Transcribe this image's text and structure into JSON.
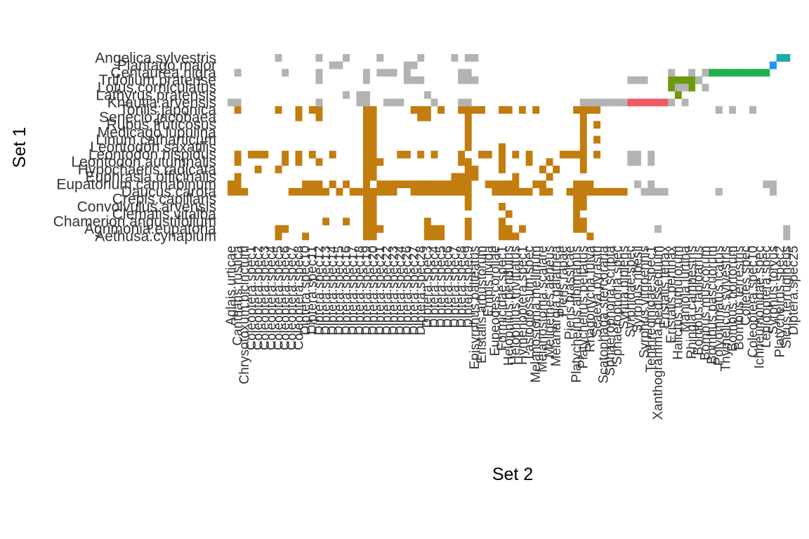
{
  "chart_data": {
    "type": "heatmap",
    "xlabel": "Set 2",
    "ylabel": "Set 1",
    "grid": false,
    "legend": "none",
    "rows": [
      "Angelica.sylvestris",
      "Plantago.major",
      "Centaurea.nigra",
      "Trifolium.pratense",
      "Lotus.corniculatus",
      "Lathyrus.pratensis",
      "Knautia.arvensis",
      "Torilis.japonica",
      "Senecio.jacobaea",
      "Rubus.fruticosus",
      "Medicago.lupulina",
      "Linum.catharticum",
      "Leontodon.saxatilis",
      "Leontodon.hispidus",
      "Leontodon.autumnalis",
      "Hypochaeris.radicata",
      "Euphrasia.officinalis",
      "Eupatorium.cannabinum",
      "Daucus.carota",
      "Crepis.capillaris",
      "Convolvulus.arvensis",
      "Clematis.vitalba",
      "Chamerion.angustifolium",
      "Agrimonia.eupatoria",
      "Aethusa.cynapium"
    ],
    "columns": [
      "Aglais.urticae",
      "Cantharis.rustica",
      "Chrysotoxum.bicinctum",
      "Coleoptera.spec1",
      "Coleoptera.spec2",
      "Coleoptera.spec3",
      "Coleoptera.spec4",
      "Coleoptera.spec5",
      "Coleoptera.spec6",
      "Coleoptera.spec7",
      "Coleoptera.spec8",
      "Diptera.spec10",
      "Diptera.spec11",
      "Diptera.spec12",
      "Diptera.spec13",
      "Diptera.spec14",
      "Diptera.spec15",
      "Diptera.spec16",
      "Diptera.spec17",
      "Diptera.spec18",
      "Diptera.spec19",
      "Diptera.spec20",
      "Diptera.spec21",
      "Diptera.spec22",
      "Diptera.spec23",
      "Diptera.spec24",
      "Diptera.spec26",
      "Diptera.spec27",
      "Diptera.spec28",
      "Diptera.spec3",
      "Diptera.spec4",
      "Diptera.spec5",
      "Diptera.spec6",
      "Diptera.spec7",
      "Diptera.spec8",
      "Diptera.spec9",
      "Episyrphus.balteatus",
      "Eristalis.arbustorum",
      "Empis.livida",
      "Eupeodes.corollae",
      "Formicidae.spec1",
      "Helophilus.pendulus",
      "Helophilus.trivittatus",
      "Hymenoptera.spec1",
      "Lasioglossum.spec",
      "Melanostoma.mellinum",
      "Melanostoma.scalare",
      "Meligethes.aeneus",
      "Melanargia.galathea",
      "Pieris.rapae",
      "Pieris.brassicae",
      "Platycheirus.albimanus",
      "Platycheirus.peltatus",
      "Rhagonycha.fulva",
      "Scaeva.pyrastri",
      "Scatophaga.stercoraria",
      "Sphaerophoria.scripta",
      "Sphaerophoria.spec",
      "Syritta.pipiens",
      "Syrphidae.spec",
      "Syrphus.ribesii",
      "Syrphus.vitripennis",
      "Tenthredinidae.spec1",
      "Xanthogramma.pedissequum",
      "Eristalis.tenax",
      "Eristalis.pertinax",
      "Halictus.tumulorum",
      "Maniola.jurtina",
      "Rhingia.campestris",
      "Bombus.lapidarius",
      "Bombus.muscorum",
      "Bombus.pascuorum",
      "Polyommatus.icarus",
      "Thymelicus.sylvestris",
      "Bombus.hortorum",
      "Bombus.terrestris",
      "Colletes.spec",
      "Coleoptera.spec10",
      "Ichneumonidae.spec",
      "Lepidoptera.spec",
      "Syrphus.torvus",
      "Platycheirus.spec2",
      "Sicus.ferrugineus",
      "Diptera.spec25"
    ],
    "legend_colors": {
      "interaction_outside_modules": "#b3b3b3"
    },
    "modules": [
      {
        "color": "#c27d0e",
        "rows": [
          7,
          24
        ],
        "cols": [
          0,
          58
        ]
      },
      {
        "color": "#f05a62",
        "rows": [
          6,
          6
        ],
        "cols": [
          59,
          64
        ]
      },
      {
        "color": "#6c9a0a",
        "rows": [
          3,
          5
        ],
        "cols": [
          65,
          69
        ]
      },
      {
        "color": "#20b14a",
        "rows": [
          2,
          2
        ],
        "cols": [
          70,
          79
        ]
      },
      {
        "color": "#1e90ff",
        "rows": [
          1,
          1
        ],
        "cols": [
          80,
          80
        ]
      },
      {
        "color": "#21aaaa",
        "rows": [
          0,
          0
        ],
        "cols": [
          81,
          82
        ]
      }
    ],
    "module_cells": {
      "7": [
        1,
        7,
        10,
        12,
        13,
        20,
        21,
        27,
        28,
        29,
        31,
        34,
        35,
        36,
        37,
        40,
        41,
        43,
        45,
        51,
        52,
        53,
        54
      ],
      "8": [
        10,
        13,
        20,
        21,
        28,
        29,
        35,
        52
      ],
      "9": [
        20,
        21,
        35,
        52,
        54
      ],
      "10": [
        20,
        21,
        35,
        52
      ],
      "11": [
        20,
        21,
        35,
        52,
        54
      ],
      "12": [
        20,
        21,
        35,
        40,
        52
      ],
      "13": [
        1,
        3,
        4,
        5,
        8,
        10,
        12,
        15,
        20,
        21,
        25,
        26,
        28,
        30,
        34,
        37,
        38,
        40,
        42,
        44,
        49,
        50,
        51,
        52,
        54
      ],
      "14": [
        1,
        8,
        10,
        13,
        20,
        21,
        22,
        34,
        35,
        40,
        44,
        47,
        52
      ],
      "15": [
        4,
        7,
        20,
        21,
        35,
        36,
        40,
        46,
        48,
        52
      ],
      "16": [
        1,
        20,
        21,
        33,
        34,
        35,
        36,
        42,
        47
      ],
      "17": [
        0,
        1,
        11,
        12,
        13,
        15,
        17,
        20,
        22,
        23,
        24,
        25,
        26,
        27,
        28,
        29,
        30,
        31,
        32,
        33,
        34,
        35,
        38,
        39,
        40,
        41,
        42,
        45,
        46,
        51,
        52,
        53
      ],
      "18": [
        0,
        1,
        2,
        9,
        10,
        11,
        12,
        13,
        14,
        16,
        18,
        19,
        20,
        21,
        22,
        23,
        24,
        27,
        28,
        29,
        30,
        31,
        32,
        33,
        34,
        35,
        39,
        40,
        41,
        42,
        43,
        44,
        46,
        47,
        50,
        51,
        52,
        53,
        54,
        55,
        56,
        57,
        58
      ],
      "19": [
        20,
        21,
        35,
        51,
        52
      ],
      "20": [
        20,
        21,
        35,
        40,
        51,
        52
      ],
      "21": [
        20,
        21,
        41,
        51
      ],
      "22": [
        14,
        17,
        20,
        21,
        29,
        35,
        40,
        51,
        52
      ],
      "23": [
        7,
        8,
        20,
        21,
        22,
        29,
        30,
        31,
        35,
        40,
        41,
        43,
        51,
        52
      ],
      "24": [
        7,
        11,
        20,
        21,
        29,
        30,
        31,
        35,
        40,
        41,
        42,
        53
      ]
    },
    "outside_cells": {
      "0": [
        7,
        13,
        17,
        22,
        28,
        33,
        35,
        36
      ],
      "1": [
        15,
        16,
        26,
        27
      ],
      "2": [
        1,
        8,
        13,
        20,
        22,
        23,
        24,
        26,
        34,
        35,
        65,
        68,
        70
      ],
      "3": [
        13,
        20,
        26,
        27,
        28,
        34,
        35,
        36,
        59,
        60,
        61,
        69
      ],
      "4": [
        66,
        67,
        70
      ],
      "5": [
        17,
        19,
        20,
        29
      ],
      "6": [
        0,
        1,
        13,
        19,
        20,
        23,
        24,
        25,
        30,
        34,
        35,
        52,
        53,
        54,
        55,
        56,
        57,
        58,
        65,
        67
      ],
      "7": [
        72,
        74,
        77
      ],
      "13": [
        59,
        60,
        62
      ],
      "14": [
        59,
        60,
        62
      ],
      "17": [
        60,
        62,
        79,
        80
      ],
      "18": [
        61,
        62,
        63,
        64,
        72,
        80
      ],
      "23": [
        63,
        82
      ],
      "24": [
        82
      ]
    }
  }
}
